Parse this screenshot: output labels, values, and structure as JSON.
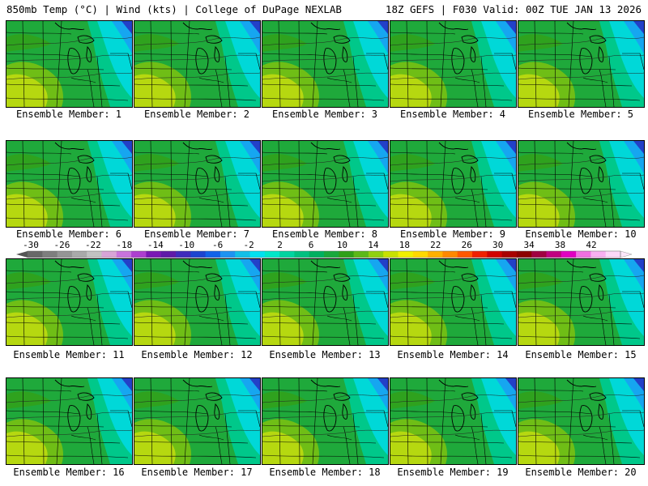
{
  "header": {
    "left": "850mb Temp (°C) | Wind (kts) | College of DuPage NEXLAB",
    "right": "18Z GEFS | F030 Valid: 00Z TUE JAN 13 2026"
  },
  "members": [
    "Ensemble Member: 1",
    "Ensemble Member: 2",
    "Ensemble Member: 3",
    "Ensemble Member: 4",
    "Ensemble Member: 5",
    "Ensemble Member: 6",
    "Ensemble Member: 7",
    "Ensemble Member: 8",
    "Ensemble Member: 9",
    "Ensemble Member: 10",
    "Ensemble Member: 11",
    "Ensemble Member: 12",
    "Ensemble Member: 13",
    "Ensemble Member: 14",
    "Ensemble Member: 15",
    "Ensemble Member: 16",
    "Ensemble Member: 17",
    "Ensemble Member: 18",
    "Ensemble Member: 19",
    "Ensemble Member: 20"
  ],
  "colorbar": {
    "labels": [
      "-30",
      "-26",
      "-22",
      "-18",
      "-14",
      "-10",
      "-6",
      "-2",
      "2",
      "6",
      "10",
      "14",
      "18",
      "22",
      "26",
      "30",
      "34",
      "38",
      "42"
    ],
    "colors": [
      "#686868",
      "#7e7e7e",
      "#959595",
      "#aaaaaa",
      "#c2c2c2",
      "#d7a4d7",
      "#c873dc",
      "#ad3fcf",
      "#7a18b4",
      "#5f1aa8",
      "#3f2bbb",
      "#1d44cf",
      "#1262e8",
      "#1d93f2",
      "#12bfe8",
      "#00e0f0",
      "#00e8c8",
      "#00d4a0",
      "#00c080",
      "#00b060",
      "#1aa83c",
      "#30a018",
      "#5cb818",
      "#90d010",
      "#c8e000",
      "#f0f000",
      "#ffd800",
      "#ffb000",
      "#ff8800",
      "#ff5800",
      "#f02000",
      "#d00000",
      "#a80000",
      "#8c0000",
      "#a00040",
      "#c00080",
      "#e000c0",
      "#f070e0",
      "#f8b0f0",
      "#fcd8f8"
    ]
  }
}
